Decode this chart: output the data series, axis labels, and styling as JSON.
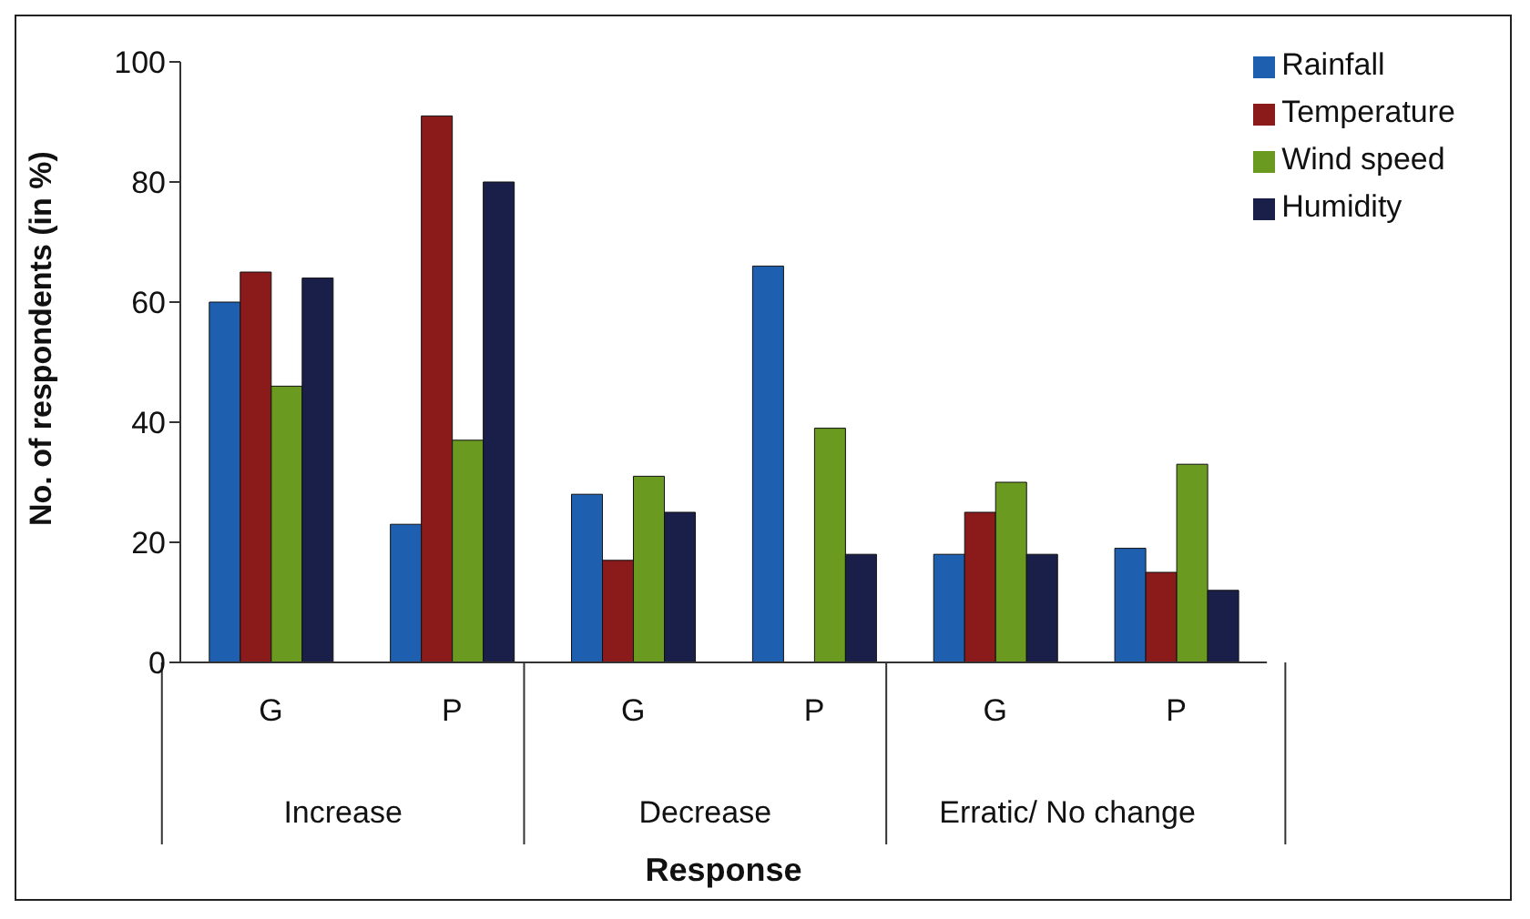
{
  "chart_data": {
    "type": "bar",
    "xlabel": "Response",
    "ylabel": "No. of respondents (in %)",
    "categories": [
      "G",
      "P",
      "G",
      "P",
      "G",
      "P"
    ],
    "annotations": [
      "Increase",
      "Decrease",
      "Erratic/ No change"
    ],
    "series": [
      {
        "name": "Rainfall",
        "color": "#1f5fb0",
        "values": [
          60,
          23,
          28,
          66,
          18,
          19
        ]
      },
      {
        "name": "Temperature",
        "color": "#8b1a1a",
        "values": [
          65,
          91,
          17,
          0,
          25,
          15
        ]
      },
      {
        "name": "Wind speed",
        "color": "#6a9a20",
        "values": [
          46,
          37,
          31,
          39,
          30,
          33
        ]
      },
      {
        "name": "Humidity",
        "color": "#1a1f4a",
        "values": [
          64,
          80,
          25,
          18,
          18,
          12
        ]
      }
    ],
    "ylim": [
      0,
      100
    ],
    "yticks": [
      0,
      20,
      40,
      60,
      80,
      100
    ],
    "grid": false,
    "legend": "top right"
  }
}
